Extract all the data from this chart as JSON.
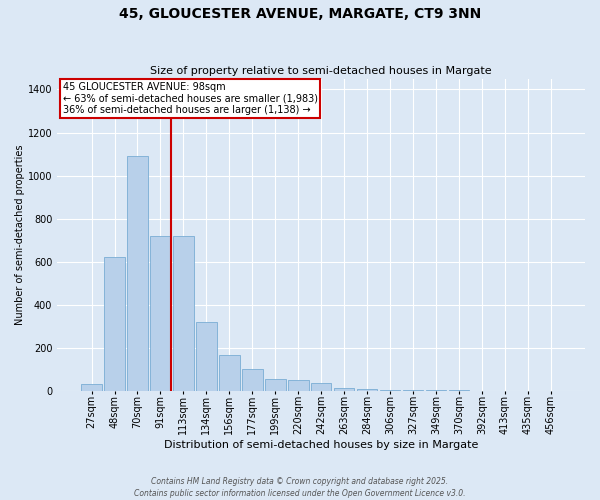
{
  "title": "45, GLOUCESTER AVENUE, MARGATE, CT9 3NN",
  "subtitle": "Size of property relative to semi-detached houses in Margate",
  "xlabel": "Distribution of semi-detached houses by size in Margate",
  "ylabel": "Number of semi-detached properties",
  "categories": [
    "27sqm",
    "48sqm",
    "70sqm",
    "91sqm",
    "113sqm",
    "134sqm",
    "156sqm",
    "177sqm",
    "199sqm",
    "220sqm",
    "242sqm",
    "263sqm",
    "284sqm",
    "306sqm",
    "327sqm",
    "349sqm",
    "370sqm",
    "392sqm",
    "413sqm",
    "435sqm",
    "456sqm"
  ],
  "values": [
    30,
    620,
    1090,
    720,
    720,
    320,
    165,
    100,
    55,
    50,
    35,
    15,
    10,
    5,
    4,
    3,
    2,
    1,
    1,
    0,
    0
  ],
  "bar_color": "#b8d0ea",
  "bar_edge_color": "#7aadd4",
  "vline_color": "#cc0000",
  "vline_bin_index": 3,
  "annotation_title": "45 GLOUCESTER AVENUE: 98sqm",
  "annotation_line1": "← 63% of semi-detached houses are smaller (1,983)",
  "annotation_line2": "36% of semi-detached houses are larger (1,138) →",
  "annotation_box_color": "#ffffff",
  "annotation_box_edge": "#cc0000",
  "ylim": [
    0,
    1450
  ],
  "yticks": [
    0,
    200,
    400,
    600,
    800,
    1000,
    1200,
    1400
  ],
  "background_color": "#dce8f5",
  "grid_color": "#ffffff",
  "title_fontsize": 10,
  "subtitle_fontsize": 8,
  "xlabel_fontsize": 8,
  "ylabel_fontsize": 7,
  "tick_fontsize": 7,
  "footer_line1": "Contains HM Land Registry data © Crown copyright and database right 2025.",
  "footer_line2": "Contains public sector information licensed under the Open Government Licence v3.0."
}
